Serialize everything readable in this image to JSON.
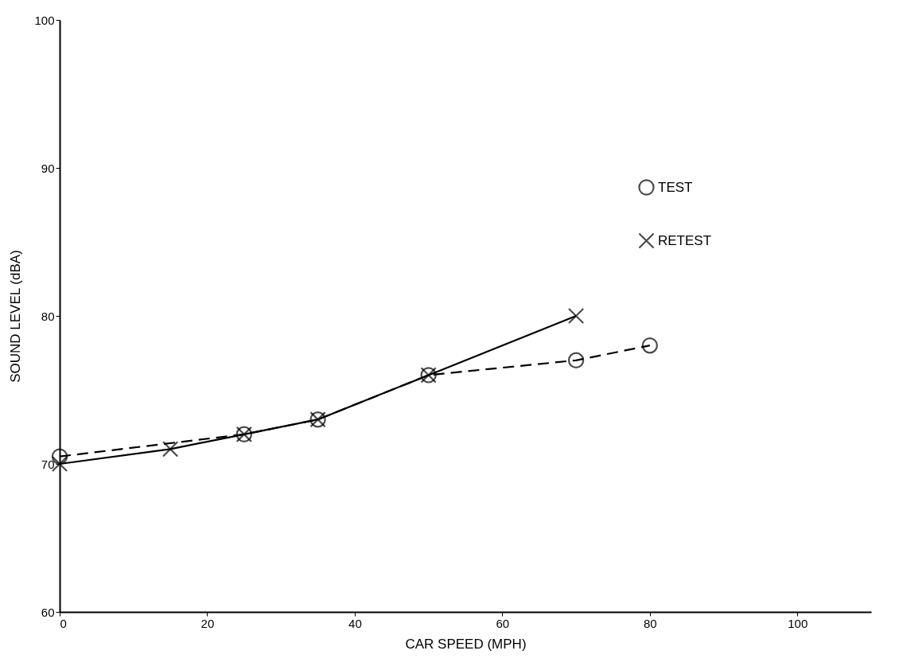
{
  "chart_data": {
    "type": "line",
    "xlabel": "CAR SPEED (MPH)",
    "ylabel": "SOUND LEVEL (dBA)",
    "xlim": [
      0,
      110
    ],
    "ylim": [
      60,
      100
    ],
    "xticks": [
      0,
      20,
      40,
      60,
      80,
      100
    ],
    "yticks": [
      60,
      70,
      80,
      90,
      100
    ],
    "grid": false,
    "legend": "top right",
    "series": [
      {
        "name": "TEST",
        "color": "#000000",
        "marker": "circle",
        "line_style": "dashed",
        "x": [
          0,
          25,
          35,
          50,
          70,
          80
        ],
        "values": [
          70.5,
          72,
          73,
          76,
          77,
          78
        ]
      },
      {
        "name": "RETEST",
        "color": "#000000",
        "marker": "cross",
        "line_style": "solid",
        "x": [
          0,
          15,
          25,
          35,
          50,
          70
        ],
        "values": [
          70,
          71,
          72,
          73,
          76,
          80
        ]
      }
    ]
  }
}
